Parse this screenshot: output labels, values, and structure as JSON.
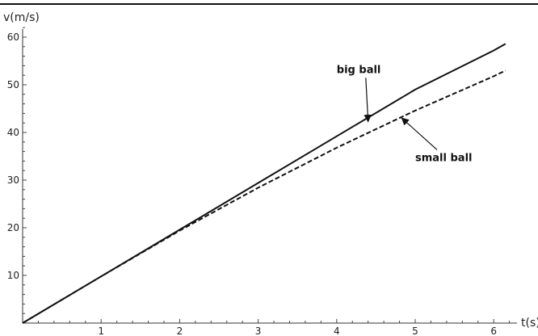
{
  "chart_data": {
    "type": "line",
    "title": "",
    "xlabel": "t(s)",
    "ylabel": "v(m/s)",
    "xlim": [
      0,
      6.2
    ],
    "ylim": [
      0,
      62
    ],
    "xticks": [
      1,
      2,
      3,
      4,
      5,
      6
    ],
    "yticks": [
      10,
      20,
      30,
      40,
      50,
      60
    ],
    "grid": false,
    "series": [
      {
        "x": [
          0,
          1,
          2,
          3,
          4,
          5,
          6,
          6.15
        ],
        "y": [
          0,
          9.8,
          19.6,
          29.4,
          39.2,
          49.0,
          57.2,
          58.6
        ],
        "style": "solid"
      },
      {
        "x": [
          0,
          1,
          2,
          3,
          4,
          5,
          6,
          6.15
        ],
        "y": [
          0,
          9.8,
          19.4,
          28.4,
          36.8,
          44.6,
          51.8,
          53.0
        ],
        "style": "dashed"
      }
    ],
    "annotations": [
      {
        "text": "big ball",
        "at": [
          4.4,
          42.3
        ],
        "label_at": [
          4.0,
          52.5
        ]
      },
      {
        "text": "small ball",
        "at": [
          4.83,
          43.0
        ],
        "label_at": [
          5.0,
          34.0
        ]
      }
    ]
  }
}
